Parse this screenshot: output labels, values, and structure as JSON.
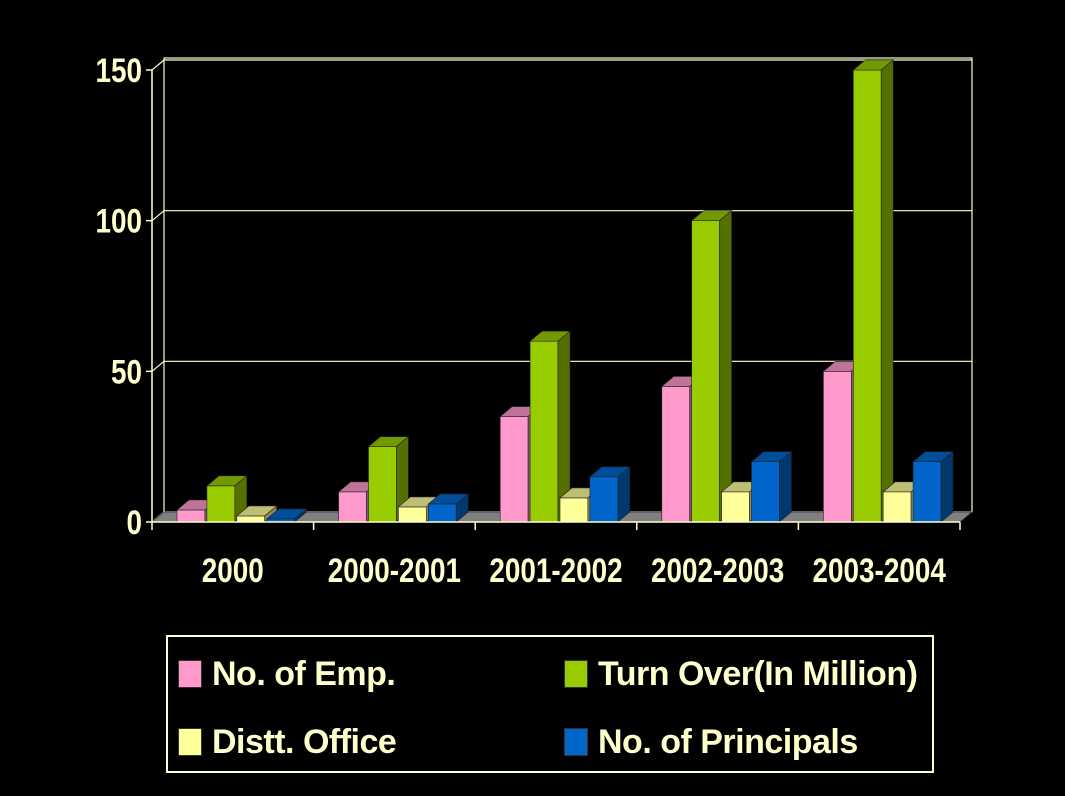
{
  "chart_data": {
    "type": "bar",
    "categories": [
      "2000",
      "2000-2001",
      "2001-2002",
      "2002-2003",
      "2003-2004"
    ],
    "series": [
      {
        "name": "No. of Emp.",
        "color": "#ff99cc",
        "values": [
          4,
          10,
          35,
          45,
          50
        ]
      },
      {
        "name": "Turn Over(In Million)",
        "color": "#99cc00",
        "values": [
          12,
          25,
          60,
          100,
          150
        ]
      },
      {
        "name": "Distt. Office",
        "color": "#ffff99",
        "values": [
          2,
          5,
          8,
          10,
          10
        ]
      },
      {
        "name": "No. of Principals",
        "color": "#0066cc",
        "values": [
          1,
          6,
          15,
          20,
          20
        ]
      }
    ],
    "yticks": [
      "0",
      "50",
      "100",
      "150"
    ],
    "ylim": [
      0,
      150
    ],
    "title": "",
    "xlabel": "",
    "ylabel": "",
    "grid": true,
    "legend_position": "bottom",
    "style": "3d-clustered-column",
    "background": "#000000",
    "text_color": "#ffffcc"
  }
}
